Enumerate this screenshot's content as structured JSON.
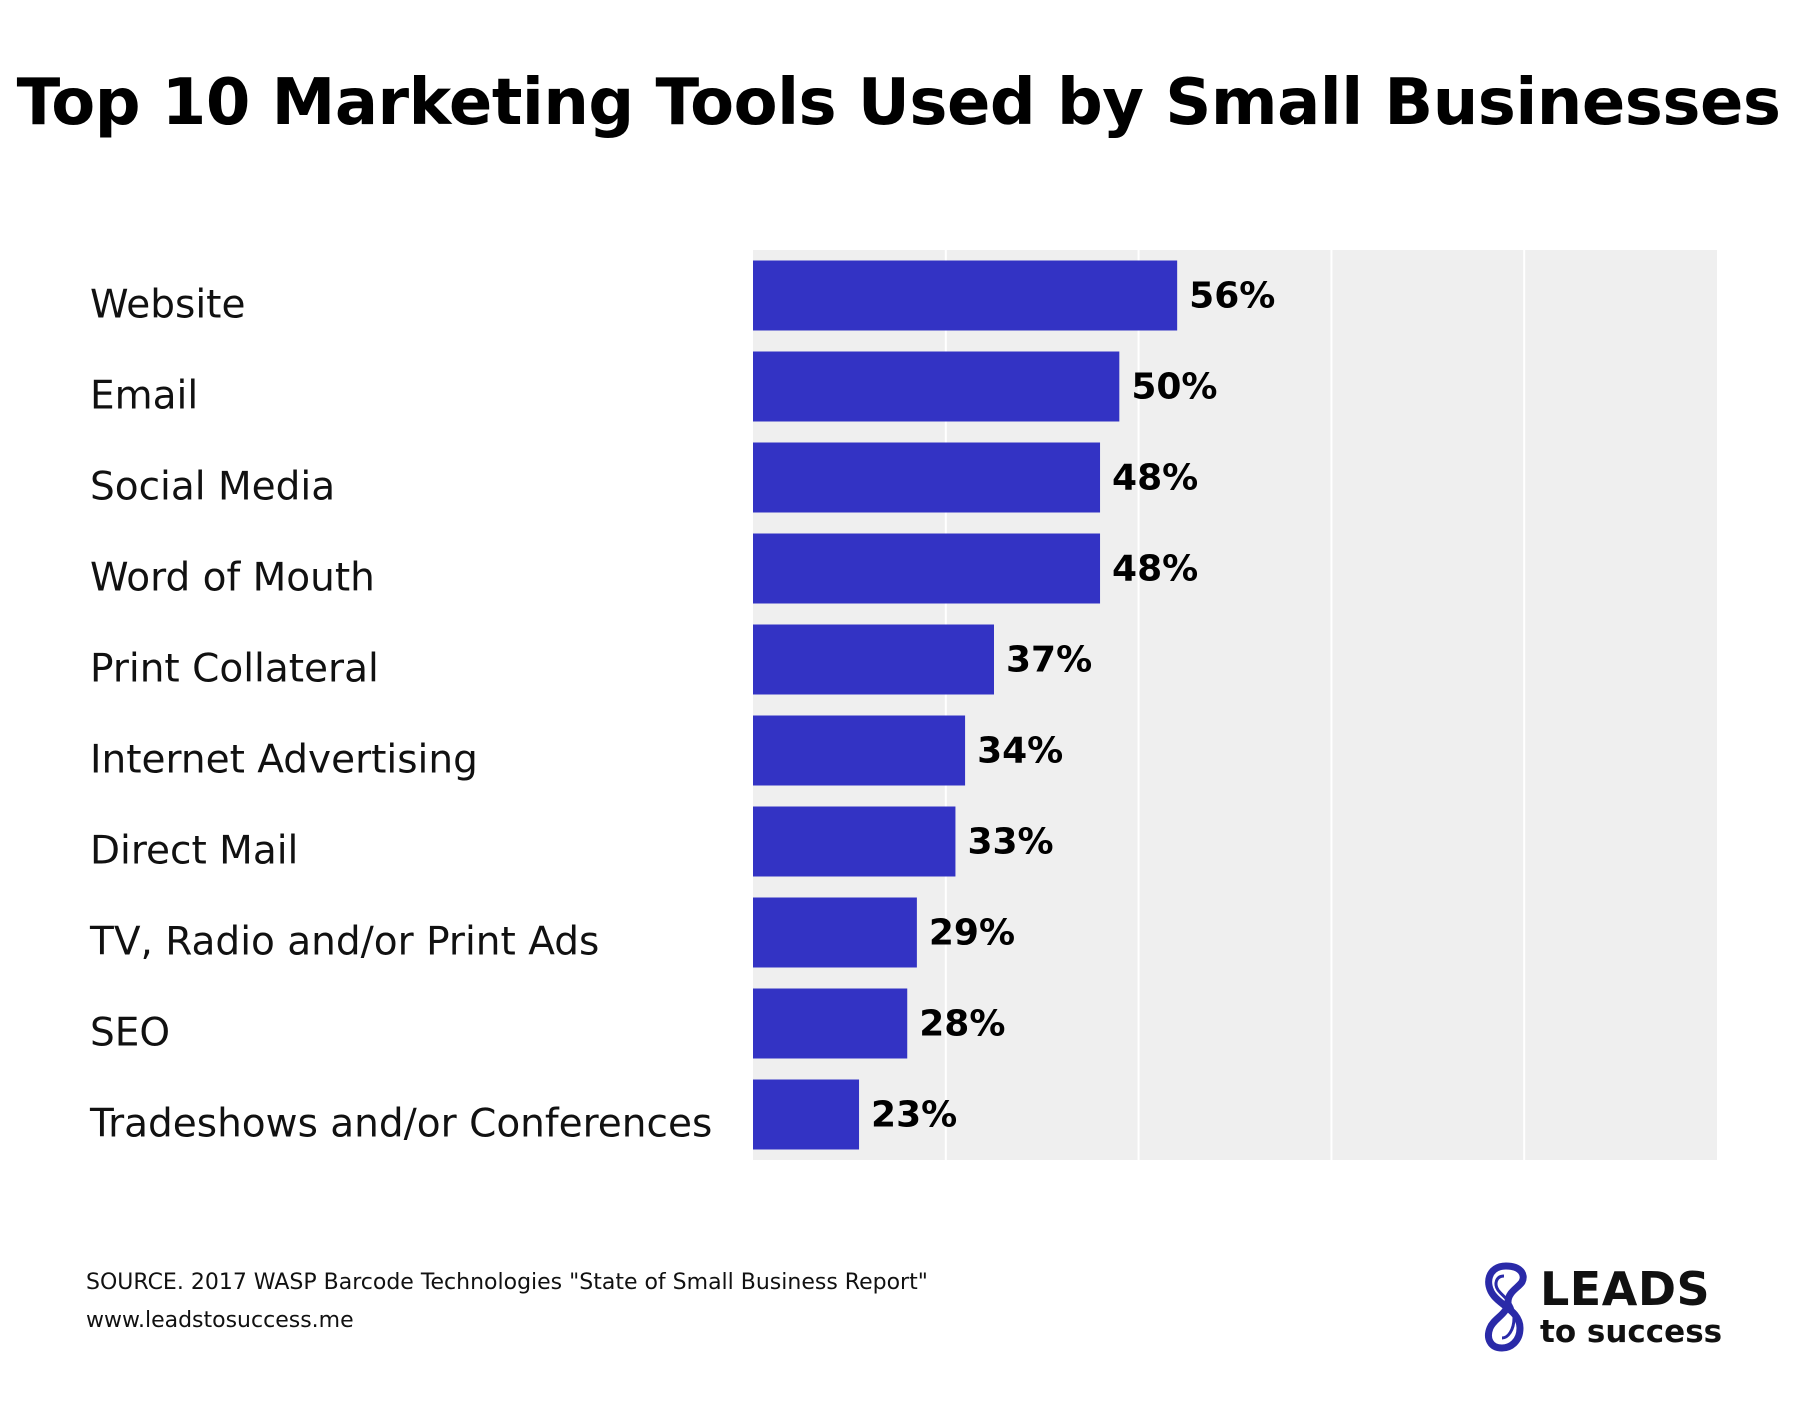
{
  "header": {
    "title": "Top 10 Marketing Tools Used by Small Businesses"
  },
  "chart_data": {
    "type": "bar",
    "orientation": "horizontal",
    "categories": [
      "Website",
      "Email",
      "Social Media",
      "Word of Mouth",
      "Print Collateral",
      "Internet Advertising",
      "Direct Mail",
      "TV, Radio and/or Print Ads",
      "SEO",
      "Tradeshows and/or Conferences"
    ],
    "values": [
      56,
      50,
      48,
      48,
      37,
      34,
      33,
      29,
      28,
      23
    ],
    "value_labels": [
      "56%",
      "50%",
      "48%",
      "48%",
      "37%",
      "34%",
      "33%",
      "29%",
      "28%",
      "23%"
    ],
    "xlim": [
      12,
      112
    ],
    "grid": true,
    "bar_color": "#3333c4",
    "plot_background": "#efefef"
  },
  "footer": {
    "source": "SOURCE. 2017 WASP Barcode Technologies \"State of Small Business Report\"",
    "url": "www.leadstosuccess.me"
  },
  "logo": {
    "top_text": "LEADS",
    "bottom_text": "to success",
    "accent_color": "#2a2aa8"
  }
}
